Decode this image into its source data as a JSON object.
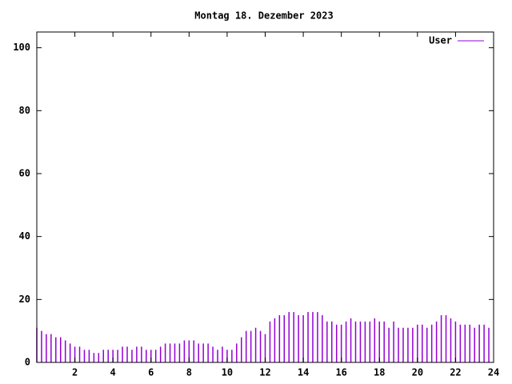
{
  "chart_data": {
    "type": "impulse",
    "title": "Montag 18. Dezember 2023",
    "x": [
      0,
      0.25,
      0.5,
      0.75,
      1,
      1.25,
      1.5,
      1.75,
      2,
      2.25,
      2.5,
      2.75,
      3,
      3.25,
      3.5,
      3.75,
      4,
      4.25,
      4.5,
      4.75,
      5,
      5.25,
      5.5,
      5.75,
      6,
      6.25,
      6.5,
      6.75,
      7,
      7.25,
      7.5,
      7.75,
      8,
      8.25,
      8.5,
      8.75,
      9,
      9.25,
      9.5,
      9.75,
      10,
      10.25,
      10.5,
      10.75,
      11,
      11.25,
      11.5,
      11.75,
      12,
      12.25,
      12.5,
      12.75,
      13,
      13.25,
      13.5,
      13.75,
      14,
      14.25,
      14.5,
      14.75,
      15,
      15.25,
      15.5,
      15.75,
      16,
      16.25,
      16.5,
      16.75,
      17,
      17.25,
      17.5,
      17.75,
      18,
      18.25,
      18.5,
      18.75,
      19,
      19.25,
      19.5,
      19.75,
      20,
      20.25,
      20.5,
      20.75,
      21,
      21.25,
      21.5,
      21.75,
      22,
      22.25,
      22.5,
      22.75,
      23,
      23.25,
      23.5,
      23.75
    ],
    "series": [
      {
        "name": "User",
        "color": "#9400d3",
        "values": [
          11,
          10,
          9,
          9,
          8,
          8,
          7,
          6,
          5,
          5,
          4,
          4,
          3,
          3,
          4,
          4,
          4,
          4,
          5,
          5,
          4,
          5,
          5,
          4,
          4,
          4,
          5,
          6,
          6,
          6,
          6,
          7,
          7,
          7,
          6,
          6,
          6,
          5,
          4,
          5,
          4,
          4,
          6,
          8,
          10,
          10,
          11,
          10,
          9,
          13,
          14,
          15,
          15,
          16,
          16,
          15,
          15,
          16,
          16,
          16,
          15,
          13,
          13,
          12,
          12,
          13,
          14,
          13,
          13,
          13,
          13,
          14,
          13,
          13,
          11,
          13,
          11,
          11,
          11,
          11,
          12,
          12,
          11,
          12,
          13,
          15,
          15,
          14,
          13,
          12,
          12,
          12,
          11,
          12,
          12,
          11
        ]
      }
    ],
    "xlim": [
      0,
      24
    ],
    "xticks": [
      2,
      4,
      6,
      8,
      10,
      12,
      14,
      16,
      18,
      20,
      22,
      24
    ],
    "ylim": [
      0,
      105
    ],
    "yticks": [
      0,
      20,
      40,
      60,
      80,
      100
    ],
    "legend": "top-right"
  }
}
